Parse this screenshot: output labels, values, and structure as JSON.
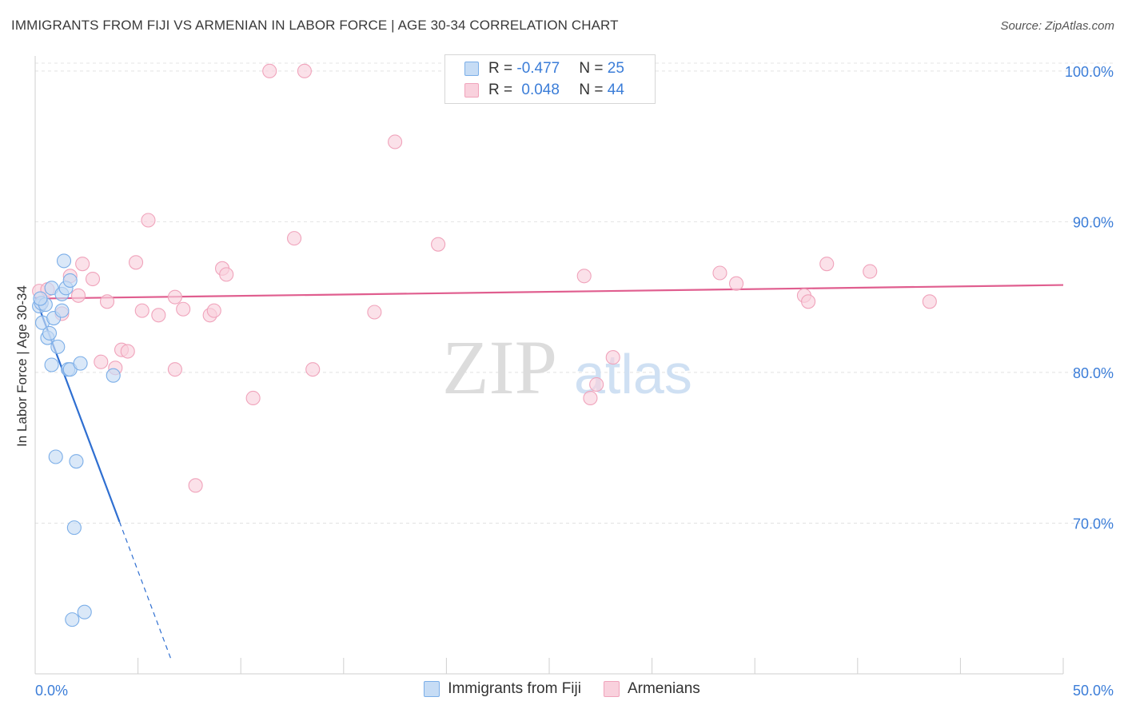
{
  "chart_data": {
    "type": "scatter",
    "title": "IMMIGRANTS FROM FIJI VS ARMENIAN IN LABOR FORCE | AGE 30-34 CORRELATION CHART",
    "source": "Source: ZipAtlas.com",
    "xlabel": "",
    "ylabel": "In Labor Force | Age 30-34",
    "xlim": [
      0,
      50
    ],
    "ylim": [
      60,
      101
    ],
    "x_tick_labels": [
      "0.0%",
      "50.0%"
    ],
    "y_ticks": [
      70,
      80,
      90,
      100
    ],
    "y_tick_labels": [
      "70.0%",
      "80.0%",
      "90.0%",
      "100.0%"
    ],
    "grid": true,
    "watermark": "ZIPatlas",
    "legend": {
      "position": "top-center",
      "entries": [
        {
          "r_label": "R = ",
          "r_value": "-0.477",
          "n_label": "N = ",
          "n_value": "25"
        },
        {
          "r_label": "R = ",
          "r_value": "0.048",
          "n_label": "N = ",
          "n_value": "44"
        }
      ]
    },
    "series": [
      {
        "name": "Immigrants from Fiji",
        "color": "#7baee8",
        "fill": "#c6dcf5",
        "line_color": "#2f6fd1",
        "trend": {
          "x0": 0.0,
          "y0": 85.0,
          "x_solid_end": 4.1,
          "x_dash_end": 6.6,
          "y_dash_end": 61.0
        },
        "points": [
          [
            0.2,
            84.4
          ],
          [
            0.3,
            84.6
          ],
          [
            0.35,
            83.3
          ],
          [
            0.5,
            84.5
          ],
          [
            0.6,
            82.3
          ],
          [
            0.7,
            82.6
          ],
          [
            0.8,
            85.6
          ],
          [
            0.8,
            80.5
          ],
          [
            0.9,
            83.6
          ],
          [
            1.0,
            74.4
          ],
          [
            1.1,
            81.7
          ],
          [
            1.3,
            84.1
          ],
          [
            1.3,
            85.2
          ],
          [
            1.4,
            87.4
          ],
          [
            1.5,
            85.6
          ],
          [
            1.6,
            80.2
          ],
          [
            1.7,
            80.2
          ],
          [
            1.7,
            86.1
          ],
          [
            1.9,
            69.7
          ],
          [
            2.0,
            74.1
          ],
          [
            2.2,
            80.6
          ],
          [
            3.8,
            79.8
          ],
          [
            1.8,
            63.6
          ],
          [
            2.4,
            64.1
          ],
          [
            0.25,
            84.9
          ]
        ]
      },
      {
        "name": "Armenians",
        "color": "#f0a3bb",
        "fill": "#f9d1dd",
        "line_color": "#e05e8f",
        "trend": {
          "x0": 0.0,
          "y0": 84.9,
          "x1": 50.0,
          "y1": 85.8
        },
        "points": [
          [
            0.2,
            85.4
          ],
          [
            0.3,
            84.6
          ],
          [
            0.6,
            85.5
          ],
          [
            1.3,
            83.9
          ],
          [
            1.7,
            86.4
          ],
          [
            2.1,
            85.1
          ],
          [
            2.3,
            87.2
          ],
          [
            2.8,
            86.2
          ],
          [
            3.5,
            84.7
          ],
          [
            3.9,
            80.3
          ],
          [
            4.2,
            81.5
          ],
          [
            4.5,
            81.4
          ],
          [
            4.9,
            87.3
          ],
          [
            5.2,
            84.1
          ],
          [
            5.5,
            90.1
          ],
          [
            6.0,
            83.8
          ],
          [
            6.8,
            80.2
          ],
          [
            6.8,
            85.0
          ],
          [
            7.2,
            84.2
          ],
          [
            8.5,
            83.8
          ],
          [
            8.7,
            84.1
          ],
          [
            9.1,
            86.9
          ],
          [
            9.3,
            86.5
          ],
          [
            7.8,
            72.5
          ],
          [
            3.2,
            80.7
          ],
          [
            10.6,
            78.3
          ],
          [
            11.4,
            100.0
          ],
          [
            12.6,
            88.9
          ],
          [
            13.1,
            100.0
          ],
          [
            13.5,
            80.2
          ],
          [
            16.5,
            84.0
          ],
          [
            17.5,
            95.3
          ],
          [
            19.6,
            88.5
          ],
          [
            26.7,
            86.4
          ],
          [
            27.0,
            78.3
          ],
          [
            27.3,
            79.2
          ],
          [
            28.1,
            81.0
          ],
          [
            33.3,
            86.6
          ],
          [
            34.1,
            85.9
          ],
          [
            37.4,
            85.1
          ],
          [
            37.6,
            84.7
          ],
          [
            38.5,
            87.2
          ],
          [
            40.6,
            86.7
          ],
          [
            43.5,
            84.7
          ]
        ]
      }
    ]
  }
}
